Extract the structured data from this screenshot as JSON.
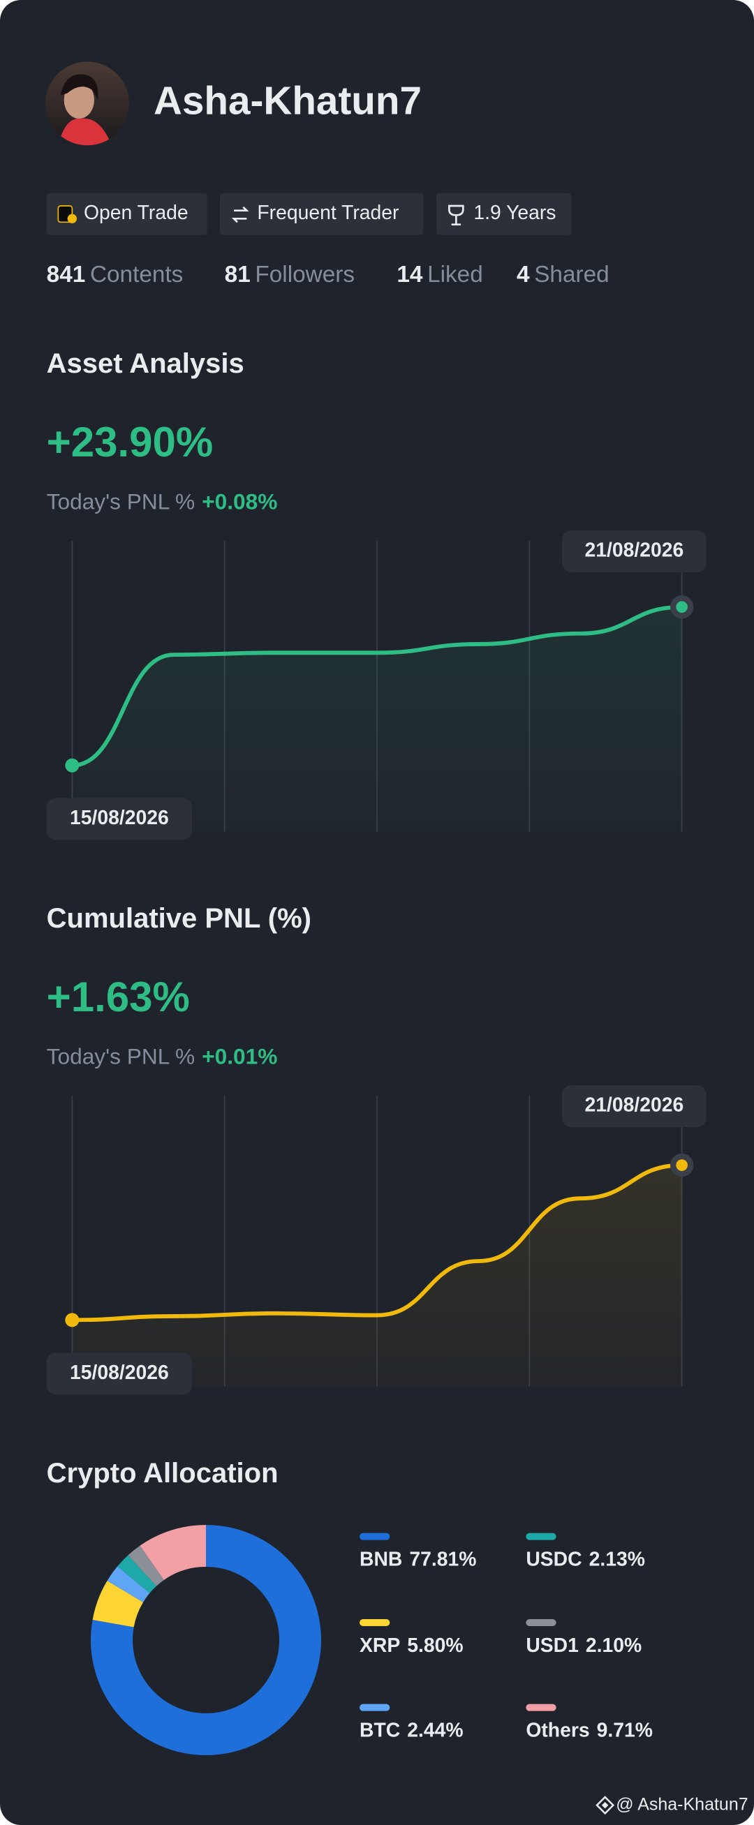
{
  "profile": {
    "name": "Asha-Khatun7",
    "badges": [
      "Open Trade",
      "Frequent Trader",
      "1.9 Years"
    ],
    "stats": [
      {
        "value": 841,
        "label": "Contents"
      },
      {
        "value": 81,
        "label": "Followers"
      },
      {
        "value": 14,
        "label": "Liked"
      },
      {
        "value": 4,
        "label": "Shared"
      }
    ]
  },
  "sections": [
    {
      "title": "Asset Analysis",
      "value": "+23.90%",
      "pnl_label": "Today's PNL %",
      "pnl_value": "+0.08%",
      "chart": {
        "type": "line",
        "values": [
          0,
          16.7,
          17.0,
          17.0,
          18.3,
          19.9,
          23.9
        ],
        "ylim": [
          -10,
          33
        ],
        "color": "#2ebd85",
        "start_label": "15/08/2026",
        "end_label": "21/08/2026"
      }
    },
    {
      "title": "Cumulative PNL (%)",
      "value": "+1.63%",
      "pnl_label": "Today's PNL %",
      "pnl_value": "+0.01%",
      "chart": {
        "type": "line",
        "values": [
          0,
          0.04,
          0.07,
          0.05,
          0.62,
          1.28,
          1.63
        ],
        "ylim": [
          -0.7,
          2.3
        ],
        "color": "#f0b90b",
        "start_label": "15/08/2026",
        "end_label": "21/08/2026"
      }
    }
  ],
  "allocation": {
    "title": "Crypto Allocation",
    "chart": {
      "type": "donut",
      "categories": [
        "BNB",
        "XRP",
        "BTC",
        "USDC",
        "USD1",
        "Others"
      ],
      "values": [
        77.81,
        5.8,
        2.44,
        2.13,
        2.1,
        9.71
      ],
      "value_labels": [
        "77.81%",
        "5.80%",
        "2.44%",
        "2.13%",
        "2.10%",
        "9.71%"
      ],
      "colors": [
        "#1e6fd9",
        "#fcd535",
        "#5ea5f5",
        "#1fa8a8",
        "#8a8f98",
        "#f29fa6"
      ]
    }
  },
  "watermark": "@ Asha-Khatun7"
}
